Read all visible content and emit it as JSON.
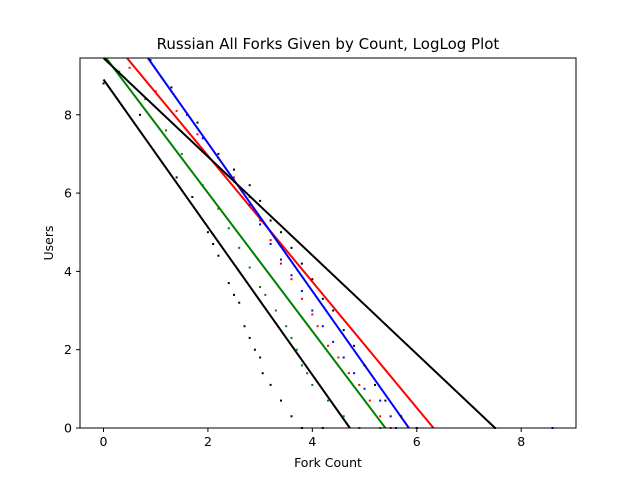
{
  "chart_data": {
    "type": "scatter",
    "title": "Russian All Forks Given by Count, LogLog Plot",
    "xlabel": "Fork Count",
    "ylabel": "Users",
    "xlim": [
      -0.45,
      9.05
    ],
    "ylim": [
      0,
      9.45
    ],
    "xticks": [
      0,
      2,
      4,
      6,
      8
    ],
    "yticks": [
      0,
      2,
      4,
      6,
      8
    ],
    "xtick_labels": [
      "0",
      "2",
      "4",
      "6",
      "8"
    ],
    "ytick_labels": [
      "0",
      "2",
      "4",
      "6",
      "8"
    ],
    "grid": false,
    "legend": "none",
    "series": [
      {
        "color": "#000000",
        "points": [
          [
            0.0,
            8.8
          ],
          [
            0.7,
            8.0
          ],
          [
            1.4,
            6.4
          ],
          [
            1.7,
            5.9
          ],
          [
            2.0,
            5.0
          ],
          [
            2.1,
            4.7
          ],
          [
            2.2,
            4.4
          ],
          [
            2.4,
            3.7
          ],
          [
            2.5,
            3.4
          ],
          [
            2.6,
            3.2
          ],
          [
            2.7,
            2.6
          ],
          [
            2.8,
            2.3
          ],
          [
            2.9,
            2.0
          ],
          [
            3.0,
            1.8
          ],
          [
            3.05,
            1.4
          ],
          [
            3.2,
            1.1
          ],
          [
            3.4,
            0.7
          ],
          [
            3.6,
            0.3
          ],
          [
            3.8,
            0.0
          ],
          [
            4.2,
            0.0
          ]
        ],
        "fit": [
          [
            0.0,
            8.9
          ],
          [
            4.72,
            0.0
          ]
        ]
      },
      {
        "color": "#008000",
        "points": [
          [
            0.3,
            9.1
          ],
          [
            0.8,
            8.4
          ],
          [
            1.2,
            7.6
          ],
          [
            1.5,
            7.0
          ],
          [
            1.9,
            6.2
          ],
          [
            2.2,
            5.6
          ],
          [
            2.4,
            5.1
          ],
          [
            2.6,
            4.6
          ],
          [
            2.8,
            4.1
          ],
          [
            3.0,
            3.6
          ],
          [
            3.1,
            3.4
          ],
          [
            3.3,
            3.0
          ],
          [
            3.5,
            2.6
          ],
          [
            3.6,
            2.3
          ],
          [
            3.7,
            2.0
          ],
          [
            3.8,
            1.6
          ],
          [
            3.9,
            1.4
          ],
          [
            4.0,
            1.1
          ],
          [
            4.3,
            0.7
          ],
          [
            4.6,
            0.3
          ],
          [
            4.9,
            0.0
          ],
          [
            5.3,
            0.0
          ]
        ],
        "fit": [
          [
            0.05,
            9.45
          ],
          [
            5.4,
            0.0
          ]
        ]
      },
      {
        "color": "#ff0000",
        "points": [
          [
            0.5,
            9.2
          ],
          [
            1.0,
            8.6
          ],
          [
            1.4,
            8.1
          ],
          [
            1.8,
            7.5
          ],
          [
            2.2,
            6.9
          ],
          [
            2.5,
            6.4
          ],
          [
            2.8,
            5.9
          ],
          [
            3.0,
            5.3
          ],
          [
            3.2,
            4.8
          ],
          [
            3.4,
            4.2
          ],
          [
            3.6,
            3.8
          ],
          [
            3.8,
            3.3
          ],
          [
            4.0,
            2.9
          ],
          [
            4.1,
            2.6
          ],
          [
            4.3,
            2.1
          ],
          [
            4.5,
            1.8
          ],
          [
            4.7,
            1.4
          ],
          [
            4.9,
            1.1
          ],
          [
            5.1,
            0.7
          ],
          [
            5.3,
            0.3
          ],
          [
            5.5,
            0.0
          ],
          [
            6.0,
            0.0
          ]
        ],
        "fit": [
          [
            0.45,
            9.45
          ],
          [
            6.32,
            0.0
          ]
        ]
      },
      {
        "color": "#0000ff",
        "points": [
          [
            0.9,
            9.4
          ],
          [
            1.3,
            8.6
          ],
          [
            1.6,
            8.0
          ],
          [
            1.9,
            7.4
          ],
          [
            2.2,
            6.9
          ],
          [
            2.5,
            6.3
          ],
          [
            2.8,
            5.7
          ],
          [
            3.0,
            5.2
          ],
          [
            3.2,
            4.7
          ],
          [
            3.4,
            4.3
          ],
          [
            3.6,
            3.9
          ],
          [
            3.8,
            3.5
          ],
          [
            4.0,
            3.0
          ],
          [
            4.2,
            2.6
          ],
          [
            4.4,
            2.2
          ],
          [
            4.6,
            1.8
          ],
          [
            4.8,
            1.4
          ],
          [
            5.0,
            1.0
          ],
          [
            5.3,
            0.7
          ],
          [
            5.5,
            0.3
          ],
          [
            5.6,
            0.0
          ],
          [
            8.6,
            0.0
          ]
        ],
        "fit": [
          [
            0.85,
            9.45
          ],
          [
            5.85,
            0.0
          ]
        ]
      },
      {
        "color": "#000000",
        "points": [
          [
            1.3,
            8.7
          ],
          [
            1.8,
            7.8
          ],
          [
            2.2,
            7.0
          ],
          [
            2.5,
            6.6
          ],
          [
            2.8,
            6.2
          ],
          [
            3.0,
            5.8
          ],
          [
            3.2,
            5.3
          ],
          [
            3.4,
            5.0
          ],
          [
            3.6,
            4.6
          ],
          [
            3.8,
            4.2
          ],
          [
            4.0,
            3.8
          ],
          [
            4.2,
            3.3
          ],
          [
            4.4,
            3.0
          ],
          [
            4.6,
            2.5
          ],
          [
            4.8,
            2.1
          ],
          [
            5.0,
            1.6
          ],
          [
            5.2,
            1.1
          ],
          [
            5.4,
            0.7
          ],
          [
            5.7,
            0.3
          ],
          [
            6.0,
            0.0
          ],
          [
            7.5,
            0.0
          ]
        ],
        "fit": [
          [
            0.0,
            9.45
          ],
          [
            7.5,
            0.0
          ]
        ]
      }
    ]
  }
}
